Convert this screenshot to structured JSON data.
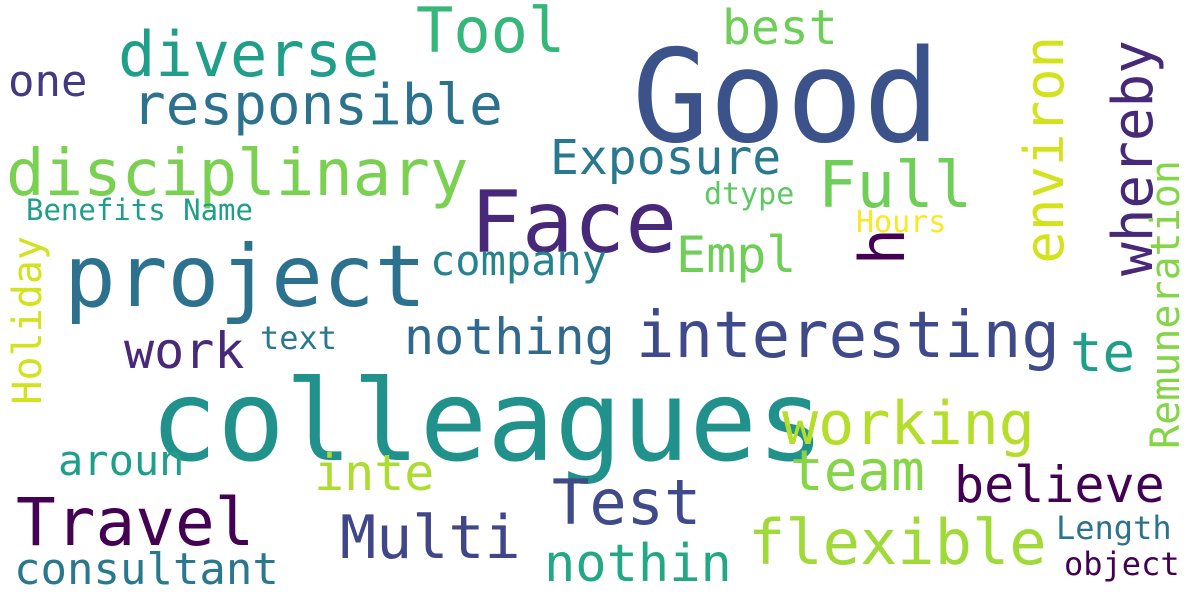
{
  "words": [
    {
      "text": "Good",
      "color": "#3b528b"
    },
    {
      "text": "colleagues",
      "color": "#21918c"
    },
    {
      "text": "project",
      "color": "#2c728e"
    },
    {
      "text": "Face",
      "color": "#482878"
    },
    {
      "text": "interesting",
      "color": "#3e4a89"
    },
    {
      "text": "disciplinary",
      "color": "#7ad151"
    },
    {
      "text": "responsible",
      "color": "#2c728e"
    },
    {
      "text": "diverse",
      "color": "#1f9e89"
    },
    {
      "text": "Tool",
      "color": "#35b779"
    },
    {
      "text": "best",
      "color": "#6ece58"
    },
    {
      "text": "one",
      "color": "#443983"
    },
    {
      "text": "Exposure",
      "color": "#2a788e"
    },
    {
      "text": "Full",
      "color": "#6ece58"
    },
    {
      "text": "environ",
      "color": "#d2e21b"
    },
    {
      "text": "whereby",
      "color": "#482878"
    },
    {
      "text": "dtype",
      "color": "#5ec962"
    },
    {
      "text": "Benefits Name",
      "color": "#1f9e89"
    },
    {
      "text": "Hours",
      "color": "#fde725"
    },
    {
      "text": "h",
      "color": "#440154"
    },
    {
      "text": "Empl",
      "color": "#6ece58"
    },
    {
      "text": "company",
      "color": "#26828e"
    },
    {
      "text": "Holiday",
      "color": "#d2e21b"
    },
    {
      "text": "Remuneration",
      "color": "#86d549"
    },
    {
      "text": "nothing",
      "color": "#31688e"
    },
    {
      "text": "te",
      "color": "#1f9e89"
    },
    {
      "text": "work",
      "color": "#482878"
    },
    {
      "text": "text",
      "color": "#2a788e"
    },
    {
      "text": "working",
      "color": "#b5de2b"
    },
    {
      "text": "team",
      "color": "#86d549"
    },
    {
      "text": "believe",
      "color": "#440154"
    },
    {
      "text": "aroun",
      "color": "#1f9e89"
    },
    {
      "text": "inte",
      "color": "#addc30"
    },
    {
      "text": "Test",
      "color": "#3e4a89"
    },
    {
      "text": "Travel",
      "color": "#440154"
    },
    {
      "text": "Multi",
      "color": "#404688"
    },
    {
      "text": "flexible",
      "color": "#a0da39"
    },
    {
      "text": "Length",
      "color": "#2c728e"
    },
    {
      "text": "consultant",
      "color": "#2a788e"
    },
    {
      "text": "nothin",
      "color": "#22a884"
    },
    {
      "text": "object",
      "color": "#440154"
    }
  ]
}
